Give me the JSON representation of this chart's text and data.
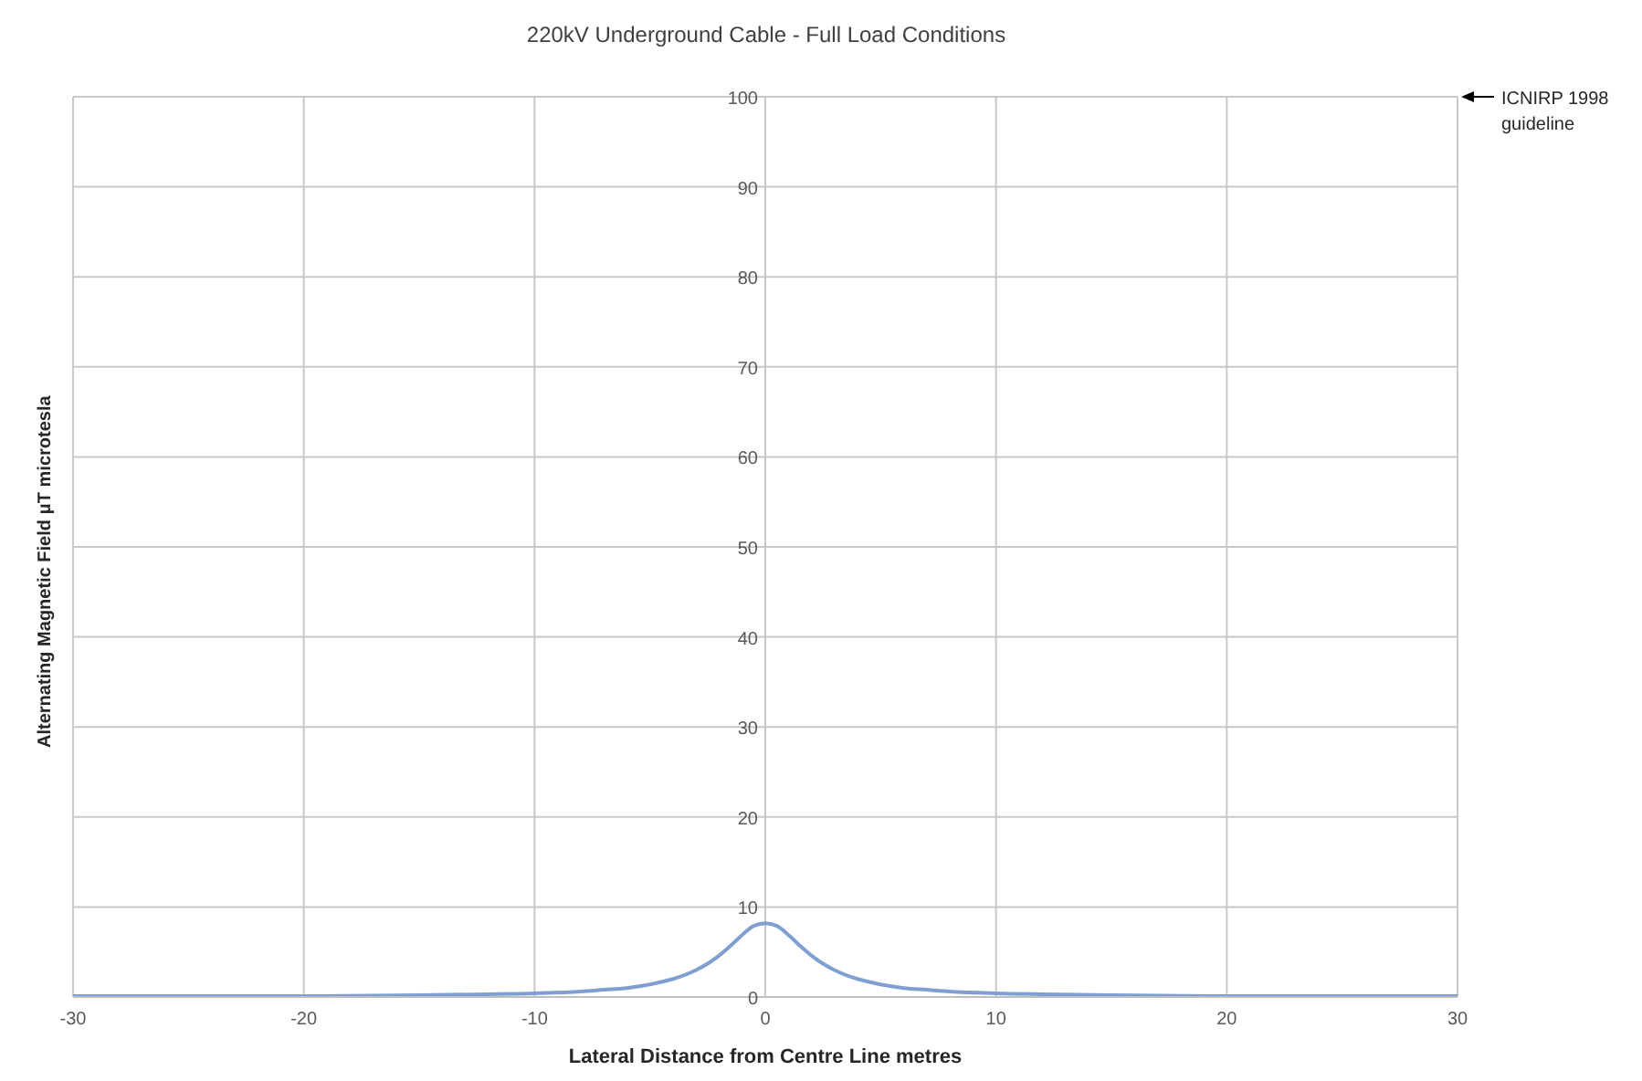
{
  "chart_data": {
    "type": "line",
    "title": "220kV Underground Cable - Full Load Conditions",
    "xlabel": "Lateral Distance from Centre Line metres",
    "ylabel": "Alternating Magnetic Field μT microtesla",
    "x": [
      -30,
      -25,
      -20,
      -15,
      -12,
      -10,
      -8,
      -7,
      -6,
      -5,
      -4,
      -3,
      -2.5,
      -2,
      -1.5,
      -1,
      -0.5,
      0,
      0.5,
      1,
      1.5,
      2,
      2.5,
      3,
      4,
      5,
      6,
      7,
      8,
      10,
      12,
      15,
      20,
      25,
      30
    ],
    "series": [
      {
        "color": "#7f9fd3",
        "values": [
          0.1,
          0.1,
          0.1,
          0.2,
          0.3,
          0.4,
          0.6,
          0.8,
          1.0,
          1.4,
          2.0,
          3.0,
          3.7,
          4.6,
          5.7,
          6.9,
          7.9,
          8.2,
          7.9,
          6.9,
          5.7,
          4.6,
          3.7,
          3.0,
          2.0,
          1.4,
          1.0,
          0.8,
          0.6,
          0.4,
          0.3,
          0.2,
          0.1,
          0.1,
          0.1
        ]
      }
    ],
    "xlim": [
      -30,
      30
    ],
    "xticks": [
      -30,
      -20,
      -10,
      0,
      10,
      20,
      30
    ],
    "ylim": [
      0,
      100
    ],
    "yticks": [
      0,
      10,
      20,
      30,
      40,
      50,
      60,
      70,
      80,
      90,
      100
    ],
    "grid": true,
    "marker": "none",
    "line_style": "solid",
    "annotations": [
      "ICNIRP 1998 guideline"
    ]
  }
}
